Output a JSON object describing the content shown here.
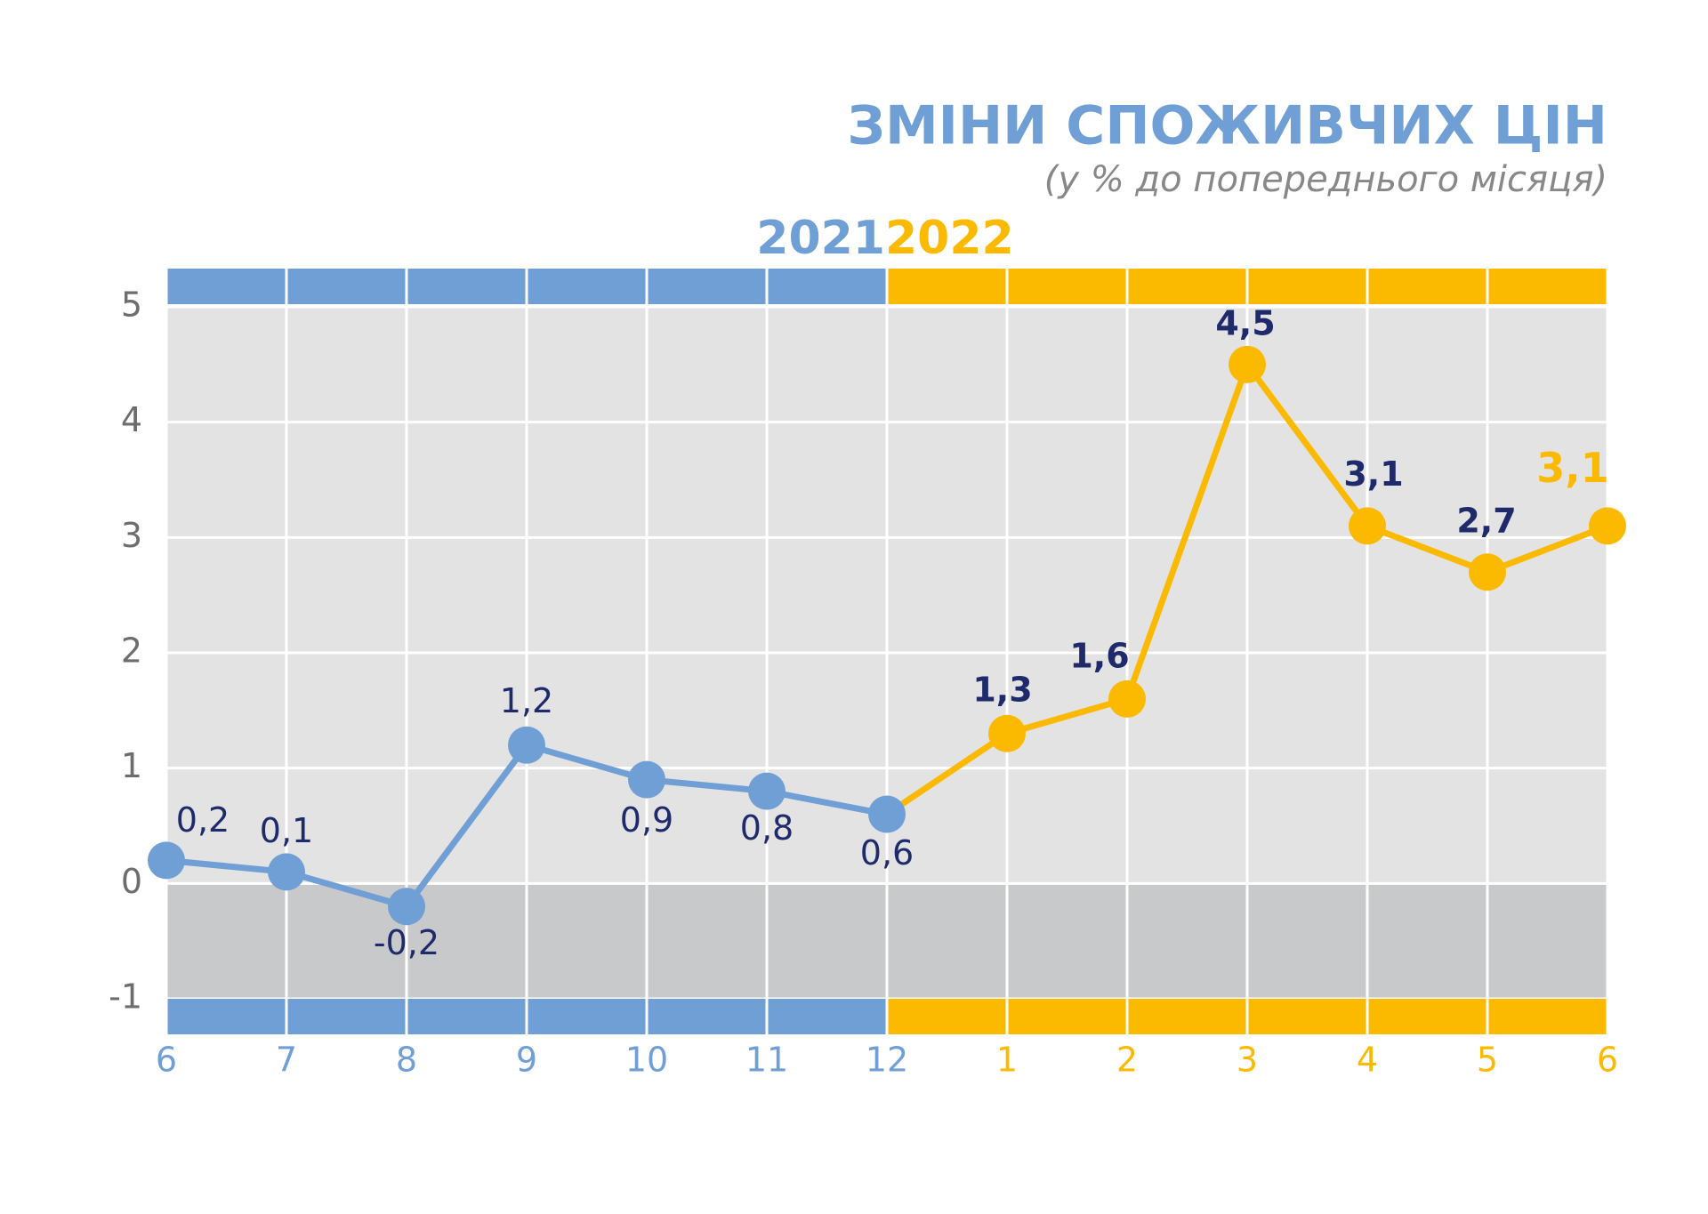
{
  "chart_data": {
    "type": "line",
    "title": "ЗМІНИ СПОЖИВЧИХ ЦІН",
    "subtitle": "(у % до попереднього місяця)",
    "categories": [
      "6",
      "7",
      "8",
      "9",
      "10",
      "11",
      "12",
      "1",
      "2",
      "3",
      "4",
      "5",
      "6"
    ],
    "series": [
      {
        "name": "2021",
        "color": "#6f9fd5",
        "values": [
          0.2,
          0.1,
          -0.2,
          1.2,
          0.9,
          0.8,
          0.6,
          null,
          null,
          null,
          null,
          null,
          null
        ],
        "value_labels": [
          "0,2",
          "0,1",
          "-0,2",
          "1,2",
          "0,9",
          "0,8",
          "0,6",
          null,
          null,
          null,
          null,
          null,
          null
        ]
      },
      {
        "name": "2022",
        "color": "#fbba00",
        "values": [
          null,
          null,
          null,
          null,
          null,
          null,
          null,
          1.3,
          1.6,
          4.5,
          3.1,
          2.7,
          3.1
        ],
        "value_labels": [
          null,
          null,
          null,
          null,
          null,
          null,
          null,
          "1,3",
          "1,6",
          "4,5",
          "3,1",
          "2,7",
          "3,1"
        ]
      }
    ],
    "ylim": [
      -1,
      5
    ],
    "yticks": [
      -1,
      0,
      1,
      2,
      3,
      4,
      5
    ],
    "grid": true
  }
}
